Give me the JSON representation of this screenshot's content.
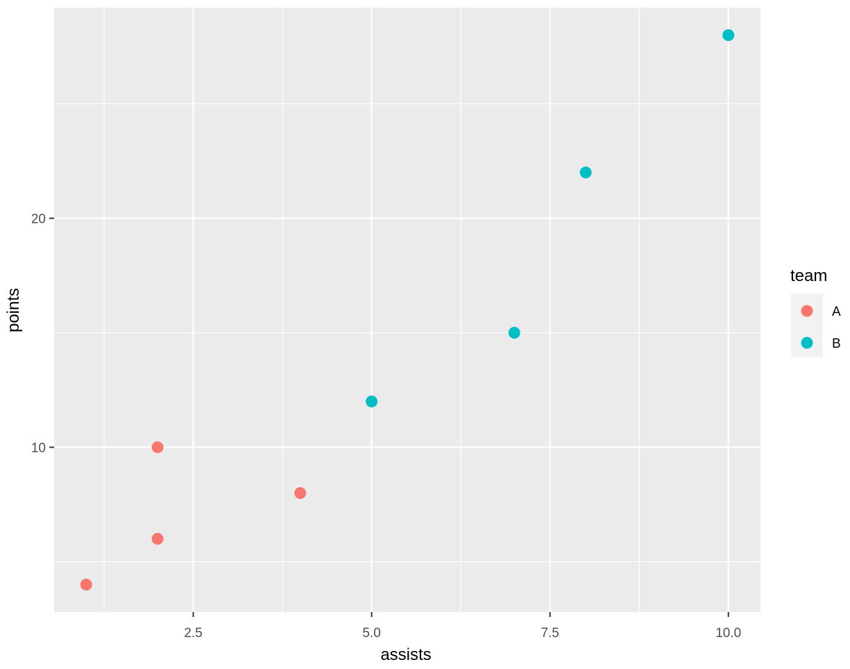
{
  "chart_data": {
    "type": "scatter",
    "title": "",
    "xlabel": "assists",
    "ylabel": "points",
    "xlim": [
      0.55,
      10.45
    ],
    "ylim": [
      2.8,
      29.2
    ],
    "x_ticks": [
      2.5,
      5.0,
      7.5,
      10.0
    ],
    "x_tick_labels": [
      "2.5",
      "5.0",
      "7.5",
      "10.0"
    ],
    "x_minor": [
      1.25,
      3.75,
      6.25,
      8.75
    ],
    "y_ticks": [
      10,
      20
    ],
    "y_tick_labels": [
      "10",
      "20"
    ],
    "y_minor": [
      5,
      15,
      25
    ],
    "grid": true,
    "legend_position": "right",
    "legend_title": "team",
    "series": [
      {
        "name": "A",
        "color": "#F8766D",
        "x": [
          1,
          2,
          2,
          4
        ],
        "y": [
          4,
          10,
          6,
          8
        ]
      },
      {
        "name": "B",
        "color": "#00BFC4",
        "x": [
          5,
          7,
          8,
          10
        ],
        "y": [
          12,
          15,
          22,
          28
        ]
      }
    ]
  },
  "theme": {
    "panel_bg": "#EBEBEB",
    "grid_color": "#FFFFFF",
    "tick_color": "#333333"
  }
}
